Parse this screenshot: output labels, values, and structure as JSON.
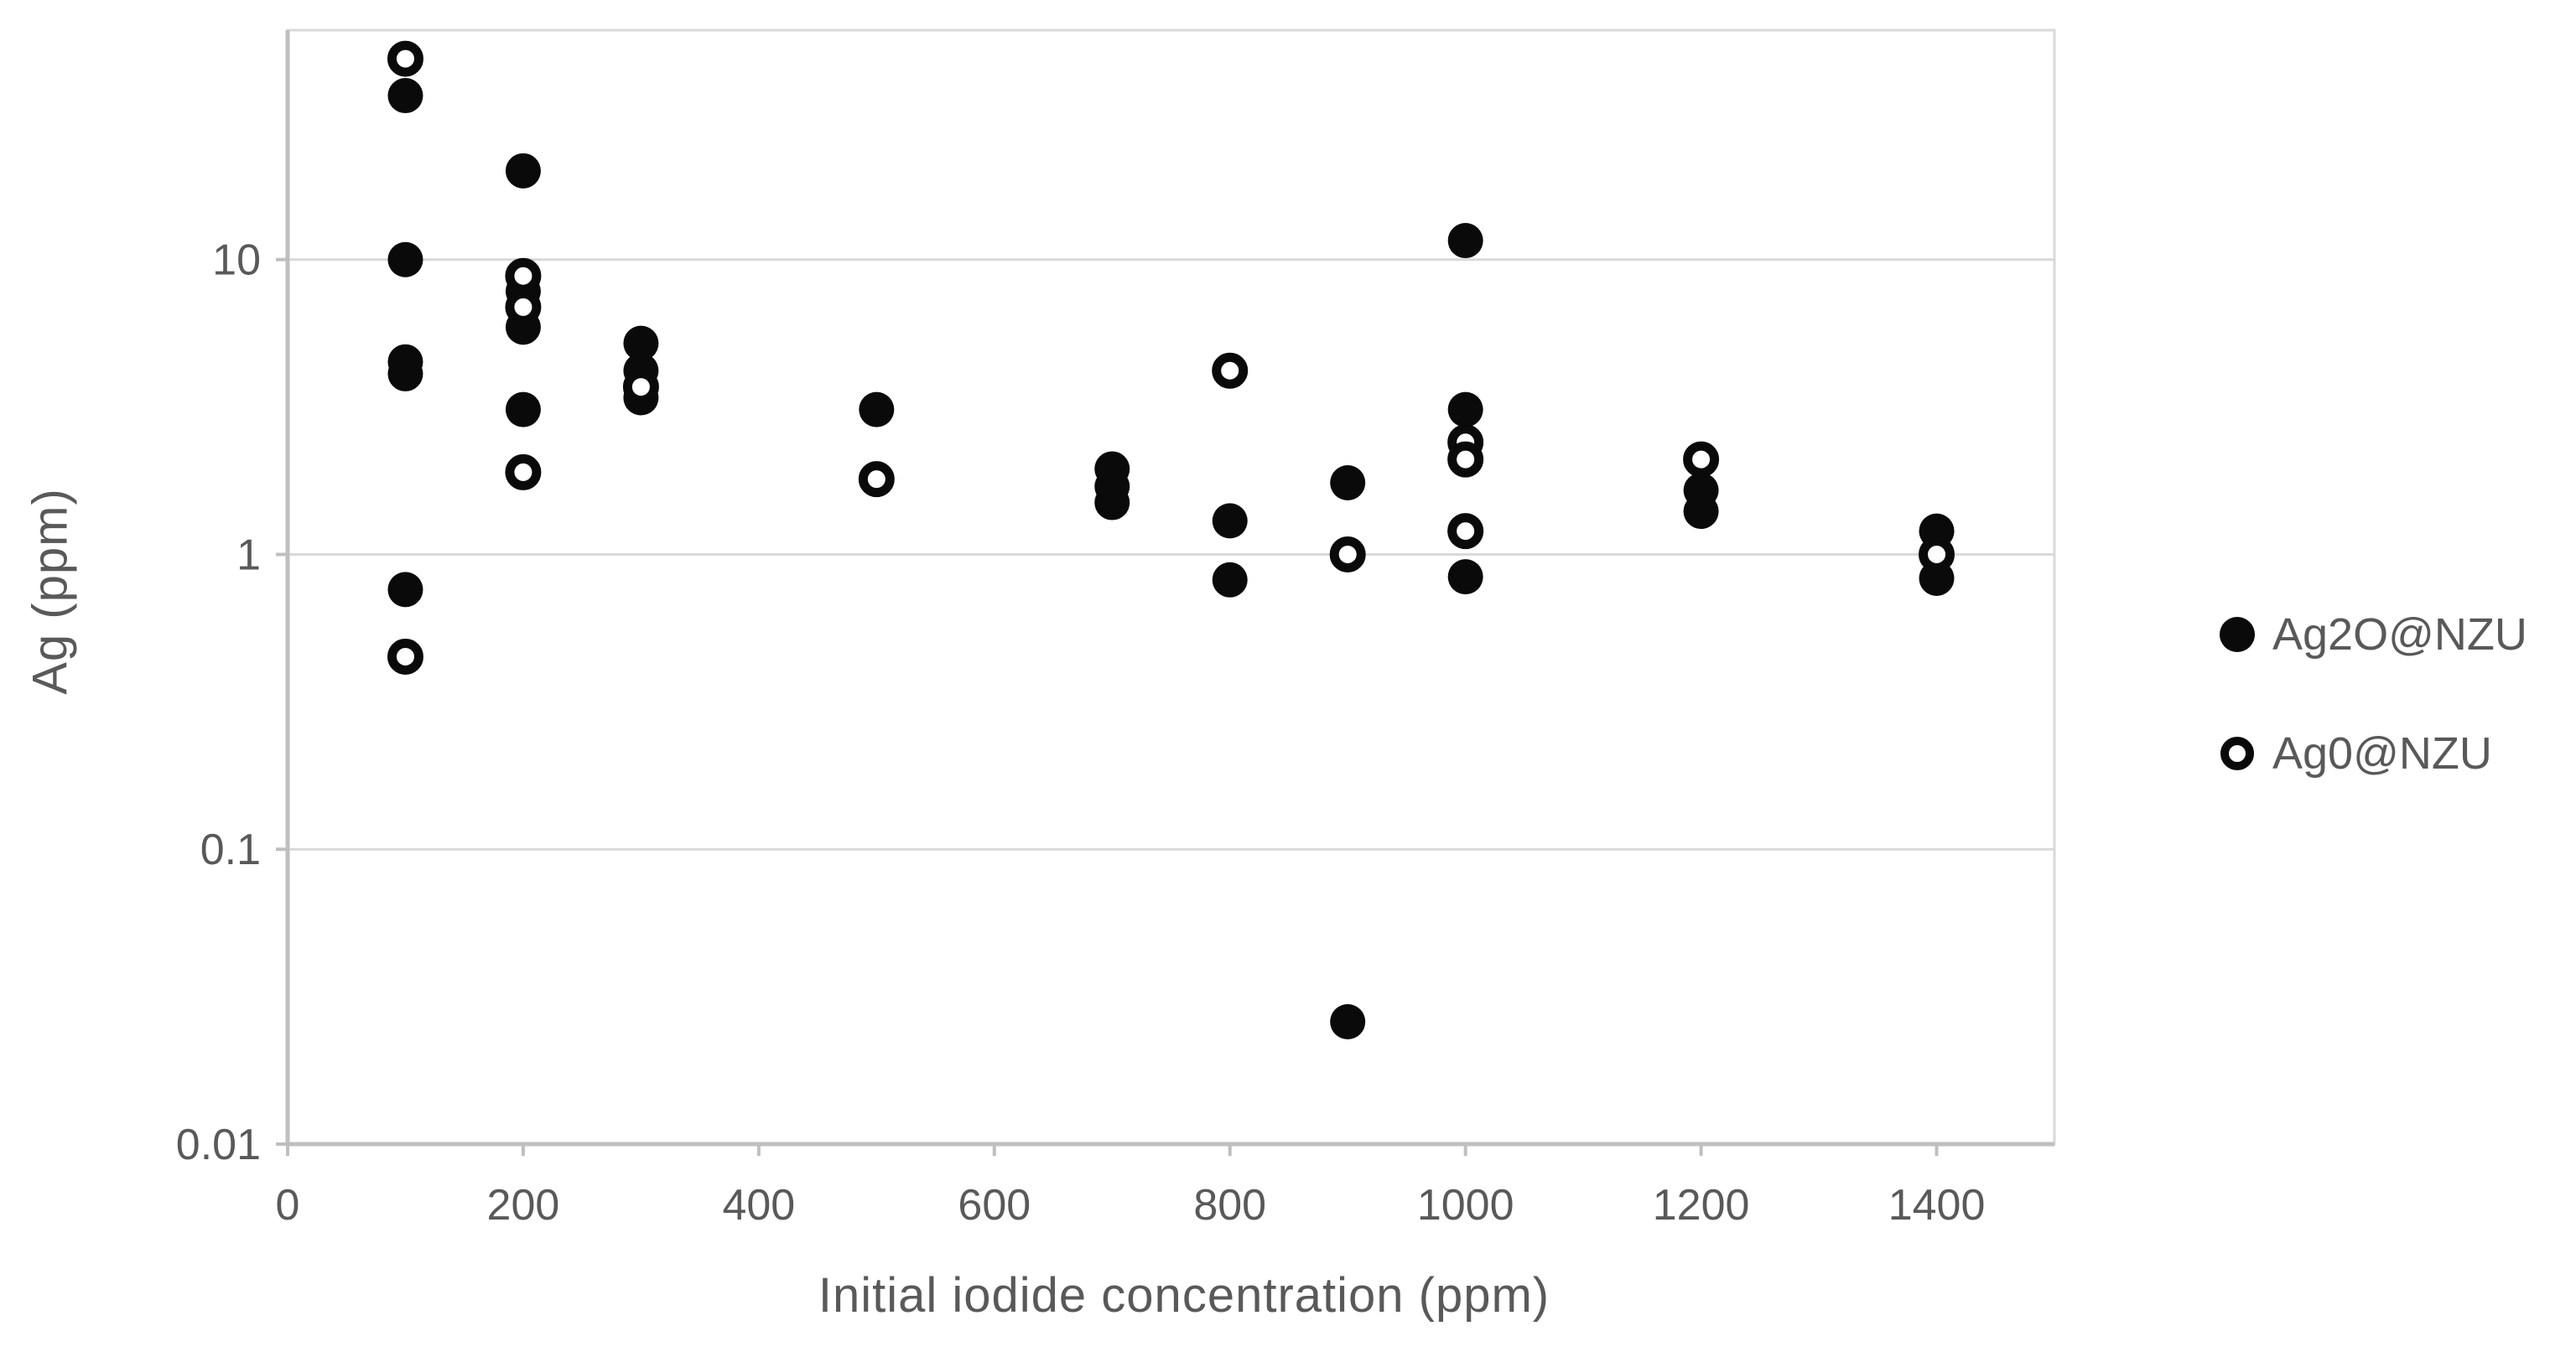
{
  "chart_data": {
    "type": "scatter",
    "title": "",
    "xlabel": "Initial iodide concentration (ppm)",
    "ylabel": "Ag (ppm)",
    "x_ticks": [
      0,
      200,
      400,
      600,
      800,
      1000,
      1200,
      1400
    ],
    "y_ticks": [
      10,
      1,
      0.1,
      0.01
    ],
    "y_tick_labels": [
      "10",
      "1",
      "0.1",
      "0.01"
    ],
    "xlim": [
      0,
      1500
    ],
    "ylim": [
      0.01,
      60
    ],
    "y_scale": "log",
    "grid": "horizontal-decade-gridlines",
    "legend_position": "right-center",
    "marker_color": "#0a0a0a",
    "gridline_color": "#d9d9d9",
    "axis_line_color": "#bfbfbf",
    "text_color": "#595959",
    "series": [
      {
        "name": "Ag2O@NZU",
        "marker": "filled-circle",
        "points": [
          [
            100,
            36
          ],
          [
            100,
            10
          ],
          [
            100,
            4.5
          ],
          [
            100,
            4.1
          ],
          [
            100,
            0.76
          ],
          [
            200,
            20
          ],
          [
            200,
            7.8
          ],
          [
            200,
            5.9
          ],
          [
            200,
            3.1
          ],
          [
            300,
            5.2
          ],
          [
            300,
            4.2
          ],
          [
            300,
            3.4
          ],
          [
            500,
            3.1
          ],
          [
            700,
            1.95
          ],
          [
            700,
            1.7
          ],
          [
            700,
            1.5
          ],
          [
            800,
            1.3
          ],
          [
            800,
            0.82
          ],
          [
            900,
            1.75
          ],
          [
            900,
            0.026
          ],
          [
            1000,
            11.6
          ],
          [
            1000,
            3.1
          ],
          [
            1000,
            0.84
          ],
          [
            1200,
            1.65
          ],
          [
            1200,
            1.4
          ],
          [
            1400,
            1.2
          ],
          [
            1400,
            0.83
          ]
        ]
      },
      {
        "name": "Ag0@NZU",
        "marker": "open-circle",
        "points": [
          [
            100,
            48
          ],
          [
            100,
            0.45
          ],
          [
            200,
            8.8
          ],
          [
            200,
            6.9
          ],
          [
            200,
            1.9
          ],
          [
            300,
            3.7
          ],
          [
            500,
            1.8
          ],
          [
            800,
            4.2
          ],
          [
            900,
            1.0
          ],
          [
            1000,
            2.4
          ],
          [
            1000,
            2.1
          ],
          [
            1000,
            1.2
          ],
          [
            1200,
            2.1
          ],
          [
            1400,
            1.0
          ]
        ]
      }
    ]
  }
}
